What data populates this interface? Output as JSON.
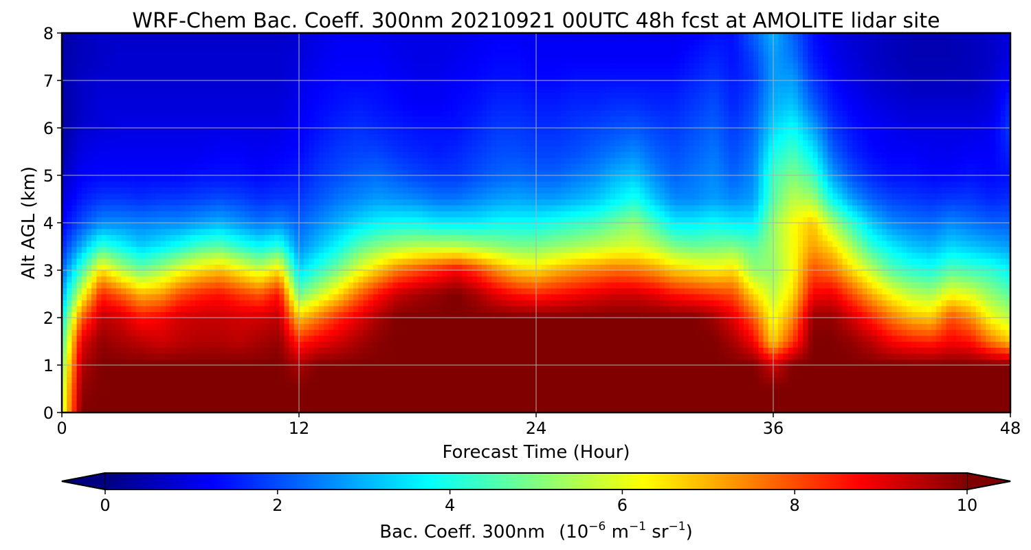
{
  "chart_data": {
    "type": "heatmap",
    "title": "WRF-Chem Bac. Coeff. 300nm  20210921 00UTC 48h fcst at AMOLITE lidar site",
    "xlabel": "Forecast Time (Hour)",
    "ylabel": "Alt AGL (km)",
    "xlim": [
      0,
      48
    ],
    "ylim": [
      0,
      8
    ],
    "xticks": [
      0,
      12,
      24,
      36,
      48
    ],
    "yticks": [
      0,
      1,
      2,
      3,
      4,
      5,
      6,
      7,
      8
    ],
    "grid": true,
    "colormap": "jet",
    "colorbar": {
      "label": "Bac. Coeff. 300nm",
      "unit_prefix": "(10",
      "unit_exp1": "−6",
      "unit_mid": " m",
      "unit_exp2": "−1",
      "unit_sr": " sr",
      "unit_exp3": "−1",
      "unit_suffix": ")",
      "range": [
        0,
        10
      ],
      "ticks": [
        0,
        2,
        4,
        6,
        8,
        10
      ],
      "extend": "both"
    },
    "x": [
      0,
      1,
      2,
      3,
      4,
      5,
      6,
      7,
      8,
      9,
      10,
      11,
      12,
      13,
      14,
      15,
      16,
      17,
      18,
      19,
      20,
      21,
      22,
      23,
      24,
      25,
      26,
      27,
      28,
      29,
      30,
      31,
      32,
      33,
      34,
      35,
      36,
      37,
      38,
      39,
      40,
      41,
      42,
      43,
      44,
      45,
      46,
      47,
      48
    ],
    "series": [
      {
        "values": [
          5.7,
          10,
          10,
          10,
          10,
          10,
          10,
          10,
          10,
          10,
          10,
          10,
          10,
          10,
          10,
          10,
          10,
          10,
          10,
          10,
          10,
          10,
          10,
          10,
          10,
          10,
          10,
          10,
          10,
          10,
          10,
          10,
          10,
          10,
          10,
          10,
          10,
          10,
          10,
          10,
          10,
          10,
          10,
          10,
          10,
          10,
          10,
          10,
          10
        ]
      },
      {
        "values": [
          5.5,
          9.8,
          10,
          10,
          10,
          10,
          10,
          10,
          10,
          10,
          10,
          10,
          10,
          10,
          10,
          10,
          10,
          10,
          10,
          10,
          10,
          10,
          10,
          10,
          10,
          10,
          10,
          10,
          10,
          10,
          10,
          10,
          10,
          10,
          10,
          10,
          10,
          10,
          10,
          10,
          10,
          10,
          10,
          10,
          10,
          10,
          10,
          10,
          10
        ]
      },
      {
        "values": [
          5.0,
          9.5,
          10,
          10,
          10,
          10,
          10,
          10,
          10,
          10,
          10,
          10,
          9.6,
          10,
          10,
          10,
          10,
          10,
          10,
          10,
          10,
          10,
          10,
          10,
          10,
          10,
          10,
          10,
          10,
          10,
          10,
          10,
          10,
          10,
          10,
          10,
          9.2,
          10,
          10,
          10,
          10,
          10,
          10,
          10,
          10,
          10,
          10,
          10,
          10
        ]
      },
      {
        "values": [
          4.4,
          9.0,
          9.8,
          9.6,
          9.4,
          9.2,
          9.4,
          9.5,
          9.5,
          9.4,
          9.6,
          9.8,
          8.4,
          8.9,
          9.2,
          9.6,
          9.9,
          10,
          10,
          10,
          10,
          10,
          10,
          10,
          10,
          10,
          10,
          10,
          10,
          10,
          10,
          10,
          10,
          10,
          9.6,
          8.8,
          6.7,
          8.2,
          10,
          10,
          9.8,
          9.4,
          8.8,
          8.5,
          8.4,
          8.8,
          8.6,
          7.6,
          6.8
        ]
      },
      {
        "values": [
          3.7,
          7.8,
          9.4,
          9.2,
          8.6,
          8.8,
          9.2,
          9.3,
          9.3,
          9.2,
          9.2,
          9.4,
          6.8,
          7.6,
          8.4,
          9.0,
          9.6,
          10,
          10,
          10,
          10,
          10,
          10,
          10,
          10,
          10,
          10,
          10,
          10,
          10,
          10,
          10,
          10,
          9.7,
          9.0,
          7.9,
          6.1,
          7.4,
          9.8,
          9.8,
          9.2,
          8.4,
          7.6,
          7.0,
          6.8,
          8.0,
          7.4,
          6.2,
          5.6
        ]
      },
      {
        "values": [
          2.9,
          6.0,
          8.4,
          7.8,
          7.0,
          7.2,
          8.0,
          8.4,
          8.6,
          8.2,
          7.9,
          8.6,
          4.8,
          5.7,
          6.6,
          7.7,
          8.6,
          9.3,
          9.6,
          9.8,
          10,
          9.6,
          9.0,
          8.6,
          8.4,
          8.6,
          8.8,
          9.0,
          9.2,
          9.2,
          9.0,
          8.6,
          8.4,
          8.2,
          8.0,
          6.6,
          5.6,
          6.6,
          8.8,
          8.9,
          8.0,
          7.0,
          6.2,
          5.6,
          5.4,
          6.2,
          5.9,
          5.2,
          4.6
        ]
      },
      {
        "values": [
          2.2,
          4.4,
          6.6,
          5.6,
          4.9,
          5.4,
          6.1,
          6.6,
          6.9,
          6.4,
          5.8,
          6.6,
          3.4,
          4.2,
          5.0,
          6.0,
          6.8,
          7.6,
          8.0,
          8.4,
          8.8,
          8.2,
          7.4,
          6.8,
          6.6,
          7.0,
          7.3,
          7.5,
          7.7,
          7.6,
          7.3,
          6.8,
          6.6,
          6.4,
          6.6,
          5.2,
          5.2,
          6.2,
          8.0,
          7.6,
          6.6,
          5.6,
          4.6,
          4.2,
          4.0,
          4.6,
          4.4,
          4.2,
          3.7
        ]
      },
      {
        "values": [
          1.6,
          3.0,
          4.3,
          3.8,
          3.3,
          3.6,
          4.0,
          4.5,
          4.7,
          4.2,
          3.8,
          4.2,
          2.6,
          3.2,
          3.8,
          4.6,
          5.1,
          5.4,
          5.6,
          5.6,
          5.6,
          5.4,
          5.2,
          5.0,
          5.0,
          5.2,
          5.4,
          5.6,
          5.8,
          5.9,
          5.6,
          5.0,
          4.8,
          4.9,
          5.0,
          4.6,
          5.3,
          6.2,
          7.2,
          6.6,
          5.4,
          4.2,
          3.6,
          3.2,
          3.0,
          3.4,
          3.2,
          3.0,
          2.8
        ]
      },
      {
        "values": [
          1.2,
          2.0,
          2.6,
          2.6,
          2.5,
          2.6,
          2.6,
          2.8,
          3.0,
          2.7,
          2.4,
          2.6,
          2.2,
          2.6,
          3.0,
          3.4,
          3.7,
          3.8,
          3.8,
          3.6,
          3.6,
          3.6,
          3.8,
          3.8,
          3.8,
          4.0,
          4.2,
          4.4,
          4.8,
          5.2,
          4.4,
          3.6,
          3.6,
          3.8,
          3.6,
          3.6,
          5.2,
          6.2,
          6.8,
          5.4,
          4.2,
          3.2,
          2.6,
          2.4,
          2.3,
          2.6,
          2.4,
          2.2,
          2.2
        ]
      },
      {
        "values": [
          0.9,
          1.5,
          1.8,
          1.8,
          1.7,
          1.8,
          1.8,
          1.9,
          2.0,
          1.9,
          1.7,
          1.8,
          1.8,
          2.1,
          2.4,
          2.6,
          2.8,
          2.7,
          2.6,
          2.4,
          2.4,
          2.6,
          2.8,
          2.9,
          2.8,
          2.8,
          3.0,
          3.2,
          3.6,
          4.0,
          3.2,
          2.6,
          2.6,
          2.8,
          2.6,
          2.8,
          4.6,
          5.6,
          5.4,
          3.8,
          2.8,
          2.2,
          1.9,
          1.8,
          1.7,
          1.8,
          1.8,
          1.6,
          1.7
        ]
      },
      {
        "values": [
          0.6,
          1.2,
          1.3,
          1.3,
          1.3,
          1.3,
          1.3,
          1.4,
          1.4,
          1.4,
          1.3,
          1.4,
          1.5,
          1.8,
          2.0,
          2.2,
          2.3,
          2.1,
          1.9,
          1.8,
          1.8,
          2.0,
          2.2,
          2.3,
          2.2,
          2.2,
          2.4,
          2.6,
          3.0,
          3.2,
          2.6,
          2.2,
          2.4,
          2.6,
          2.2,
          2.6,
          4.4,
          5.0,
          4.4,
          2.8,
          2.0,
          1.6,
          1.4,
          1.4,
          1.3,
          1.3,
          1.4,
          1.3,
          1.4
        ]
      },
      {
        "values": [
          0.4,
          1.0,
          1.1,
          1.1,
          1.1,
          1.1,
          1.1,
          1.1,
          1.2,
          1.2,
          1.1,
          1.2,
          1.3,
          1.6,
          1.8,
          1.9,
          1.9,
          1.7,
          1.6,
          1.5,
          1.6,
          1.8,
          2.0,
          2.0,
          1.9,
          1.9,
          2.0,
          2.2,
          2.4,
          2.6,
          2.2,
          2.0,
          2.2,
          2.4,
          2.0,
          2.4,
          3.9,
          4.4,
          3.6,
          2.2,
          1.6,
          1.3,
          1.2,
          1.2,
          1.1,
          1.1,
          1.2,
          1.2,
          1.6
        ]
      },
      {
        "values": [
          0.3,
          0.8,
          0.9,
          1.0,
          1.0,
          1.0,
          1.0,
          1.0,
          1.0,
          1.0,
          1.0,
          1.0,
          1.2,
          1.4,
          1.6,
          1.7,
          1.6,
          1.5,
          1.4,
          1.4,
          1.4,
          1.6,
          1.8,
          1.8,
          1.7,
          1.7,
          1.8,
          1.9,
          2.0,
          2.1,
          1.9,
          1.8,
          2.0,
          2.2,
          1.8,
          2.2,
          3.4,
          3.8,
          2.9,
          1.8,
          1.4,
          1.2,
          1.1,
          1.0,
          1.0,
          1.0,
          1.0,
          1.1,
          1.8
        ]
      },
      {
        "values": [
          0.3,
          0.7,
          0.9,
          0.9,
          0.9,
          0.9,
          0.9,
          0.9,
          0.9,
          0.9,
          0.9,
          0.9,
          1.1,
          1.3,
          1.4,
          1.5,
          1.4,
          1.3,
          1.2,
          1.2,
          1.3,
          1.4,
          1.6,
          1.6,
          1.5,
          1.5,
          1.6,
          1.6,
          1.7,
          1.7,
          1.6,
          1.6,
          1.8,
          2.0,
          1.6,
          2.0,
          3.0,
          3.2,
          2.2,
          1.5,
          1.2,
          1.0,
          0.9,
          0.8,
          0.8,
          0.8,
          0.8,
          0.9,
          1.6
        ]
      },
      {
        "values": [
          0.4,
          0.7,
          0.8,
          0.8,
          0.8,
          0.8,
          0.8,
          0.8,
          0.8,
          0.8,
          0.8,
          0.8,
          1.0,
          1.2,
          1.3,
          1.3,
          1.3,
          1.2,
          1.1,
          1.1,
          1.2,
          1.3,
          1.4,
          1.4,
          1.3,
          1.3,
          1.4,
          1.4,
          1.4,
          1.4,
          1.4,
          1.4,
          1.6,
          1.8,
          1.5,
          1.8,
          2.8,
          2.8,
          1.8,
          1.3,
          1.0,
          0.8,
          0.7,
          0.6,
          0.6,
          0.6,
          0.6,
          0.8,
          1.2
        ]
      },
      {
        "values": [
          0.4,
          0.6,
          0.7,
          0.8,
          0.8,
          0.8,
          0.8,
          0.8,
          0.8,
          0.8,
          0.8,
          0.8,
          0.9,
          1.1,
          1.2,
          1.2,
          1.2,
          1.1,
          1.0,
          1.0,
          1.1,
          1.2,
          1.3,
          1.3,
          1.2,
          1.2,
          1.2,
          1.2,
          1.2,
          1.2,
          1.2,
          1.2,
          1.4,
          1.6,
          1.4,
          1.9,
          2.8,
          2.4,
          1.5,
          1.1,
          0.9,
          0.7,
          0.6,
          0.5,
          0.5,
          0.5,
          0.6,
          0.7,
          1.0
        ]
      },
      {
        "values": [
          0.3,
          0.6,
          0.7,
          0.7,
          0.7,
          0.7,
          0.7,
          0.7,
          0.7,
          0.7,
          0.7,
          0.7,
          0.8,
          1.0,
          1.1,
          1.1,
          1.1,
          1.0,
          1.0,
          1.0,
          1.0,
          1.1,
          1.2,
          1.2,
          1.1,
          1.1,
          1.1,
          1.1,
          1.1,
          1.1,
          1.1,
          1.1,
          1.2,
          1.4,
          1.4,
          2.2,
          3.0,
          2.2,
          1.4,
          1.0,
          0.8,
          0.7,
          0.6,
          0.5,
          0.5,
          0.5,
          0.6,
          0.7,
          0.9
        ]
      }
    ]
  }
}
